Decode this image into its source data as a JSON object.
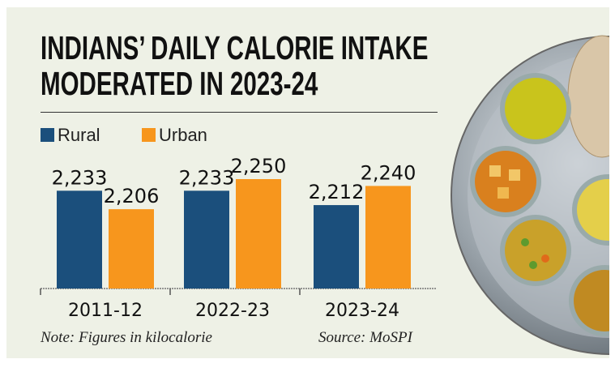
{
  "title_lines": [
    "INDIANS’ DAILY CALORIE INTAKE",
    "MODERATED IN 2023-24"
  ],
  "note": "Note: Figures in kilocalorie",
  "source": "Source: MoSPI",
  "chart_data": {
    "type": "bar",
    "title": "INDIANS’ DAILY CALORIE INTAKE MODERATED IN 2023-24",
    "categories": [
      "2011-12",
      "2022-23",
      "2023-24"
    ],
    "series": [
      {
        "name": "Rural",
        "color": "#1b4f7c",
        "values": [
          2233,
          2233,
          2212
        ],
        "labels": [
          "2,233",
          "2,233",
          "2,212"
        ]
      },
      {
        "name": "Urban",
        "color": "#f7961d",
        "values": [
          2206,
          2250,
          2240
        ],
        "labels": [
          "2,206",
          "2,250",
          "2,240"
        ]
      }
    ],
    "ylim": [
      2090,
      2250
    ],
    "grid": false,
    "legend": "top-left",
    "xlabel": "",
    "ylabel": ""
  },
  "image": {
    "subject": "thali-plate-icon"
  }
}
